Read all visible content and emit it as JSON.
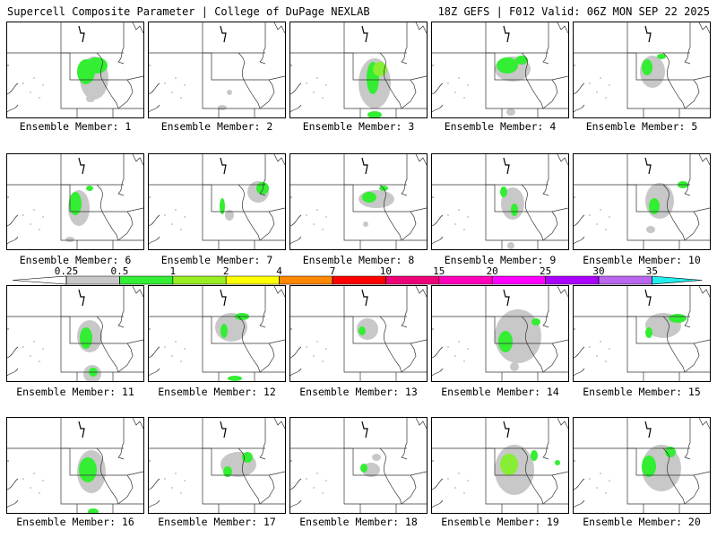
{
  "header": {
    "left": "Supercell Composite Parameter | College of DuPage NEXLAB",
    "right": "18Z GEFS | F012 Valid: 06Z MON SEP 22 2025"
  },
  "legend": {
    "labels": [
      "0.25",
      "0.5",
      "1",
      "2",
      "4",
      "7",
      "10",
      "15",
      "20",
      "25",
      "30",
      "35"
    ],
    "colors": [
      "#c8c8c8",
      "#33ee33",
      "#99ee22",
      "#ffff00",
      "#ff8800",
      "#ff0000",
      "#ee0077",
      "#ff00bb",
      "#ff00ff",
      "#aa00ff",
      "#bb66ee",
      "#22eeee"
    ],
    "color_names": [
      "gray",
      "green",
      "light-green",
      "yellow",
      "orange",
      "red",
      "crimson",
      "magenta",
      "fuchsia",
      "purple",
      "lavender",
      "cyan"
    ]
  },
  "member_label_prefix": "Ensemble Member: ",
  "members": [
    {
      "label": "Ensemble Member: 1",
      "blobs": [
        [
          88,
          55,
          10,
          14,
          1
        ],
        [
          100,
          48,
          12,
          9,
          1
        ],
        [
          97,
          62,
          16,
          24,
          0
        ],
        [
          93,
          85,
          5,
          4,
          0
        ]
      ]
    },
    {
      "label": "Ensemble Member: 2",
      "blobs": [
        [
          82,
          95,
          5,
          3,
          0
        ],
        [
          90,
          78,
          3,
          3,
          0
        ]
      ]
    },
    {
      "label": "Ensemble Member: 3",
      "blobs": [
        [
          92,
          62,
          7,
          18,
          1
        ],
        [
          100,
          52,
          8,
          8,
          2
        ],
        [
          94,
          68,
          18,
          28,
          0
        ],
        [
          94,
          103,
          8,
          4,
          1
        ]
      ]
    },
    {
      "label": "Ensemble Member: 4",
      "blobs": [
        [
          84,
          48,
          12,
          9,
          1
        ],
        [
          100,
          42,
          7,
          5,
          1
        ],
        [
          90,
          52,
          20,
          14,
          0
        ],
        [
          88,
          100,
          5,
          4,
          0
        ]
      ]
    },
    {
      "label": "Ensemble Member: 5",
      "blobs": [
        [
          82,
          50,
          6,
          9,
          1
        ],
        [
          98,
          38,
          5,
          3,
          1
        ],
        [
          88,
          55,
          14,
          18,
          0
        ]
      ]
    },
    {
      "label": "Ensemble Member: 6",
      "blobs": [
        [
          76,
          55,
          7,
          13,
          1
        ],
        [
          92,
          38,
          4,
          3,
          1
        ],
        [
          80,
          60,
          12,
          20,
          0
        ],
        [
          70,
          95,
          5,
          3,
          0
        ]
      ]
    },
    {
      "label": "Ensemble Member: 7",
      "blobs": [
        [
          127,
          38,
          7,
          7,
          1
        ],
        [
          82,
          58,
          3,
          9,
          1
        ],
        [
          122,
          42,
          12,
          12,
          0
        ],
        [
          90,
          68,
          5,
          6,
          0
        ]
      ]
    },
    {
      "label": "Ensemble Member: 8",
      "blobs": [
        [
          88,
          48,
          8,
          6,
          1
        ],
        [
          104,
          38,
          5,
          3,
          1
        ],
        [
          96,
          50,
          20,
          10,
          0
        ],
        [
          84,
          78,
          3,
          3,
          0
        ]
      ]
    },
    {
      "label": "Ensemble Member: 9",
      "blobs": [
        [
          80,
          42,
          4,
          6,
          1
        ],
        [
          92,
          62,
          4,
          7,
          1
        ],
        [
          90,
          55,
          13,
          18,
          0
        ],
        [
          88,
          102,
          4,
          4,
          0
        ]
      ]
    },
    {
      "label": "Ensemble Member: 10",
      "blobs": [
        [
          90,
          58,
          6,
          9,
          1
        ],
        [
          122,
          34,
          6,
          4,
          1
        ],
        [
          96,
          52,
          16,
          20,
          0
        ],
        [
          86,
          84,
          5,
          4,
          0
        ]
      ]
    },
    {
      "label": "Ensemble Member: 11",
      "blobs": [
        [
          88,
          58,
          7,
          12,
          1
        ],
        [
          96,
          96,
          5,
          5,
          1
        ],
        [
          92,
          56,
          14,
          18,
          0
        ],
        [
          95,
          98,
          10,
          10,
          0
        ]
      ]
    },
    {
      "label": "Ensemble Member: 12",
      "blobs": [
        [
          84,
          50,
          4,
          8,
          1
        ],
        [
          104,
          34,
          8,
          4,
          1
        ],
        [
          92,
          46,
          18,
          16,
          0
        ],
        [
          96,
          103,
          8,
          3,
          1
        ]
      ]
    },
    {
      "label": "Ensemble Member: 13",
      "blobs": [
        [
          80,
          50,
          4,
          5,
          1
        ],
        [
          86,
          48,
          12,
          12,
          0
        ]
      ]
    },
    {
      "label": "Ensemble Member: 14",
      "blobs": [
        [
          82,
          62,
          8,
          12,
          1
        ],
        [
          116,
          40,
          5,
          4,
          1
        ],
        [
          96,
          56,
          26,
          30,
          0
        ],
        [
          92,
          90,
          5,
          5,
          0
        ]
      ]
    },
    {
      "label": "Ensemble Member: 15",
      "blobs": [
        [
          84,
          52,
          4,
          6,
          1
        ],
        [
          116,
          36,
          10,
          5,
          1
        ],
        [
          100,
          44,
          20,
          14,
          0
        ]
      ]
    },
    {
      "label": "Ensemble Member: 16",
      "blobs": [
        [
          90,
          58,
          10,
          14,
          1
        ],
        [
          96,
          105,
          6,
          4,
          1
        ],
        [
          94,
          60,
          16,
          24,
          0
        ]
      ]
    },
    {
      "label": "Ensemble Member: 17",
      "blobs": [
        [
          88,
          60,
          5,
          6,
          1
        ],
        [
          110,
          44,
          6,
          6,
          1
        ],
        [
          100,
          52,
          20,
          14,
          0
        ]
      ]
    },
    {
      "label": "Ensemble Member: 18",
      "blobs": [
        [
          82,
          56,
          4,
          5,
          1
        ],
        [
          96,
          44,
          5,
          4,
          0
        ],
        [
          90,
          58,
          10,
          8,
          0
        ]
      ]
    },
    {
      "label": "Ensemble Member: 19",
      "blobs": [
        [
          86,
          52,
          10,
          12,
          2
        ],
        [
          114,
          42,
          4,
          6,
          1
        ],
        [
          92,
          58,
          22,
          28,
          0
        ],
        [
          140,
          50,
          3,
          3,
          1
        ]
      ]
    },
    {
      "label": "Ensemble Member: 20",
      "blobs": [
        [
          84,
          54,
          8,
          12,
          1
        ],
        [
          108,
          38,
          6,
          6,
          1
        ],
        [
          98,
          56,
          22,
          26,
          0
        ]
      ]
    }
  ]
}
